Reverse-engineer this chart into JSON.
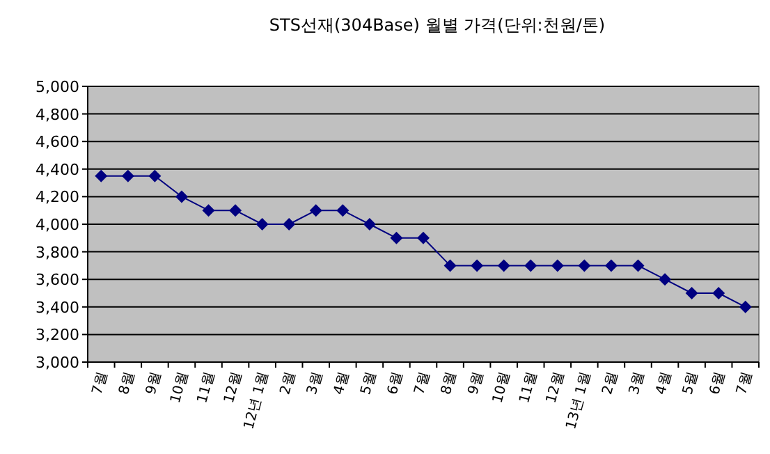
{
  "chart_data": {
    "type": "line",
    "title": "STS선재(304Base)  월별  가격(단위:천원/톤)",
    "categories": [
      "7월",
      "8월",
      "9월",
      "10월",
      "11월",
      "12월",
      "12년 1월",
      "2월",
      "3월",
      "4월",
      "5월",
      "6월",
      "7월",
      "8월",
      "9월",
      "10월",
      "11월",
      "12월",
      "13년 1월",
      "2월",
      "3월",
      "4월",
      "5월",
      "6월",
      "7월"
    ],
    "series": [
      {
        "color": "#000080",
        "values": [
          4350,
          4350,
          4350,
          4200,
          4100,
          4100,
          4000,
          4000,
          4100,
          4100,
          4000,
          3900,
          3900,
          3700,
          3700,
          3700,
          3700,
          3700,
          3700,
          3700,
          3700,
          3600,
          3500,
          3500,
          3400
        ]
      }
    ],
    "ylim": [
      3000,
      5000
    ],
    "yticks": [
      {
        "value": 3000,
        "label": "3,000"
      },
      {
        "value": 3200,
        "label": "3,200"
      },
      {
        "value": 3400,
        "label": "3,400"
      },
      {
        "value": 3600,
        "label": "3,600"
      },
      {
        "value": 3800,
        "label": "3,800"
      },
      {
        "value": 4000,
        "label": "4,000"
      },
      {
        "value": 4200,
        "label": "4,200"
      },
      {
        "value": 4400,
        "label": "4,400"
      },
      {
        "value": 4600,
        "label": "4,600"
      },
      {
        "value": 4800,
        "label": "4,800"
      },
      {
        "value": 5000,
        "label": "5,000"
      }
    ],
    "grid": "y",
    "marker": "diamond",
    "line_style": "solid"
  }
}
